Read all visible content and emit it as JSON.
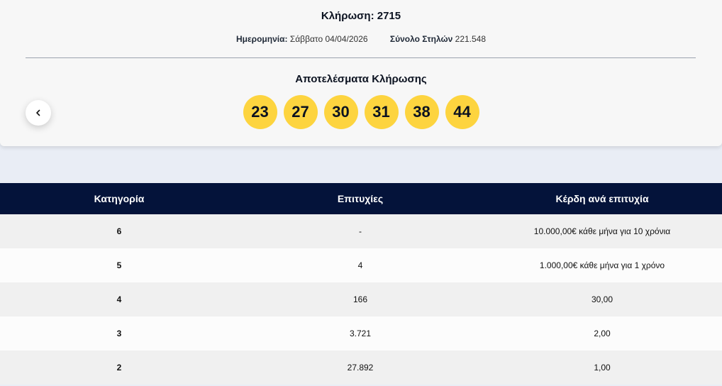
{
  "draw": {
    "title": "Κλήρωση: 2715",
    "date_label": "Ημερομηνία:",
    "date_value": "Σάββατο 04/04/2026",
    "columns_label": "Σύνολο Στηλών",
    "columns_value": "221.548"
  },
  "results": {
    "heading": "Αποτελέσματα Κλήρωσης",
    "numbers": [
      "23",
      "27",
      "30",
      "31",
      "38",
      "44"
    ],
    "ball_color": "#fdd43f"
  },
  "nav": {
    "prev_icon": "chevron-left-icon"
  },
  "table": {
    "headers": [
      "Κατηγορία",
      "Επιτυχίες",
      "Κέρδη ανά επιτυχία"
    ],
    "rows": [
      {
        "category": "6",
        "winners": "-",
        "prize": "10.000,00€ κάθε μήνα για 10 χρόνια"
      },
      {
        "category": "5",
        "winners": "4",
        "prize": "1.000,00€ κάθε μήνα για 1 χρόνο"
      },
      {
        "category": "4",
        "winners": "166",
        "prize": "30,00"
      },
      {
        "category": "3",
        "winners": "3.721",
        "prize": "2,00"
      },
      {
        "category": "2",
        "winners": "27.892",
        "prize": "1,00"
      }
    ],
    "header_bg": "#04133a"
  }
}
